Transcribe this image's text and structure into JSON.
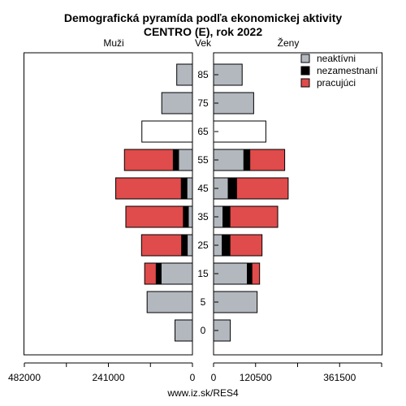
{
  "chart_data": {
    "type": "bar",
    "title": "Demografická pyramída podľa ekonomickej aktivity",
    "subtitle": "CENTRO (E), rok 2022",
    "left_label": "Muži",
    "center_label": "Vek",
    "right_label": "Ženy",
    "categories": [
      "0",
      "5",
      "15",
      "25",
      "35",
      "45",
      "55",
      "65",
      "75",
      "85"
    ],
    "left_series": [
      {
        "name": "neaktívni",
        "color": "#b3b8bf",
        "values": [
          50000,
          130000,
          90000,
          15000,
          12000,
          16000,
          40000,
          145000,
          88000,
          45000
        ]
      },
      {
        "name": "nezamestnaní",
        "color": "#000000",
        "values": [
          0,
          0,
          14000,
          16000,
          14000,
          16000,
          15000,
          0,
          0,
          0
        ]
      },
      {
        "name": "pracujúci",
        "color": "#e04b4b",
        "values": [
          0,
          0,
          33000,
          115000,
          165000,
          188000,
          140000,
          0,
          0,
          0
        ]
      }
    ],
    "right_series": [
      {
        "name": "neaktívni",
        "color": "#b3b8bf",
        "values": [
          48000,
          125000,
          97000,
          25000,
          27000,
          42000,
          87000,
          150000,
          115000,
          82000
        ]
      },
      {
        "name": "nezamestnaní",
        "color": "#000000",
        "values": [
          0,
          0,
          13000,
          22000,
          20000,
          24000,
          17000,
          0,
          0,
          0
        ]
      },
      {
        "name": "pracujúci",
        "color": "#e04b4b",
        "values": [
          0,
          0,
          22000,
          92000,
          137000,
          148000,
          100000,
          0,
          0,
          0
        ]
      }
    ],
    "special_colors": {
      "65": "#ffffff"
    },
    "left_ticks": [
      482000,
      241000,
      0
    ],
    "left_tick_labels": [
      "482000",
      "241000",
      "0"
    ],
    "right_ticks": [
      0,
      120500,
      361500
    ],
    "right_tick_labels": [
      "0",
      "120500",
      "361500"
    ],
    "left_range": [
      0,
      482000
    ],
    "right_range": [
      0,
      482000
    ],
    "legend": {
      "placement": "top-right",
      "items": [
        {
          "label": "neaktívni",
          "color": "#b3b8bf"
        },
        {
          "label": "nezamestnaní",
          "color": "#000000"
        },
        {
          "label": "pracujúci",
          "color": "#e04b4b"
        }
      ]
    },
    "source": "www.iz.sk/RES4"
  }
}
